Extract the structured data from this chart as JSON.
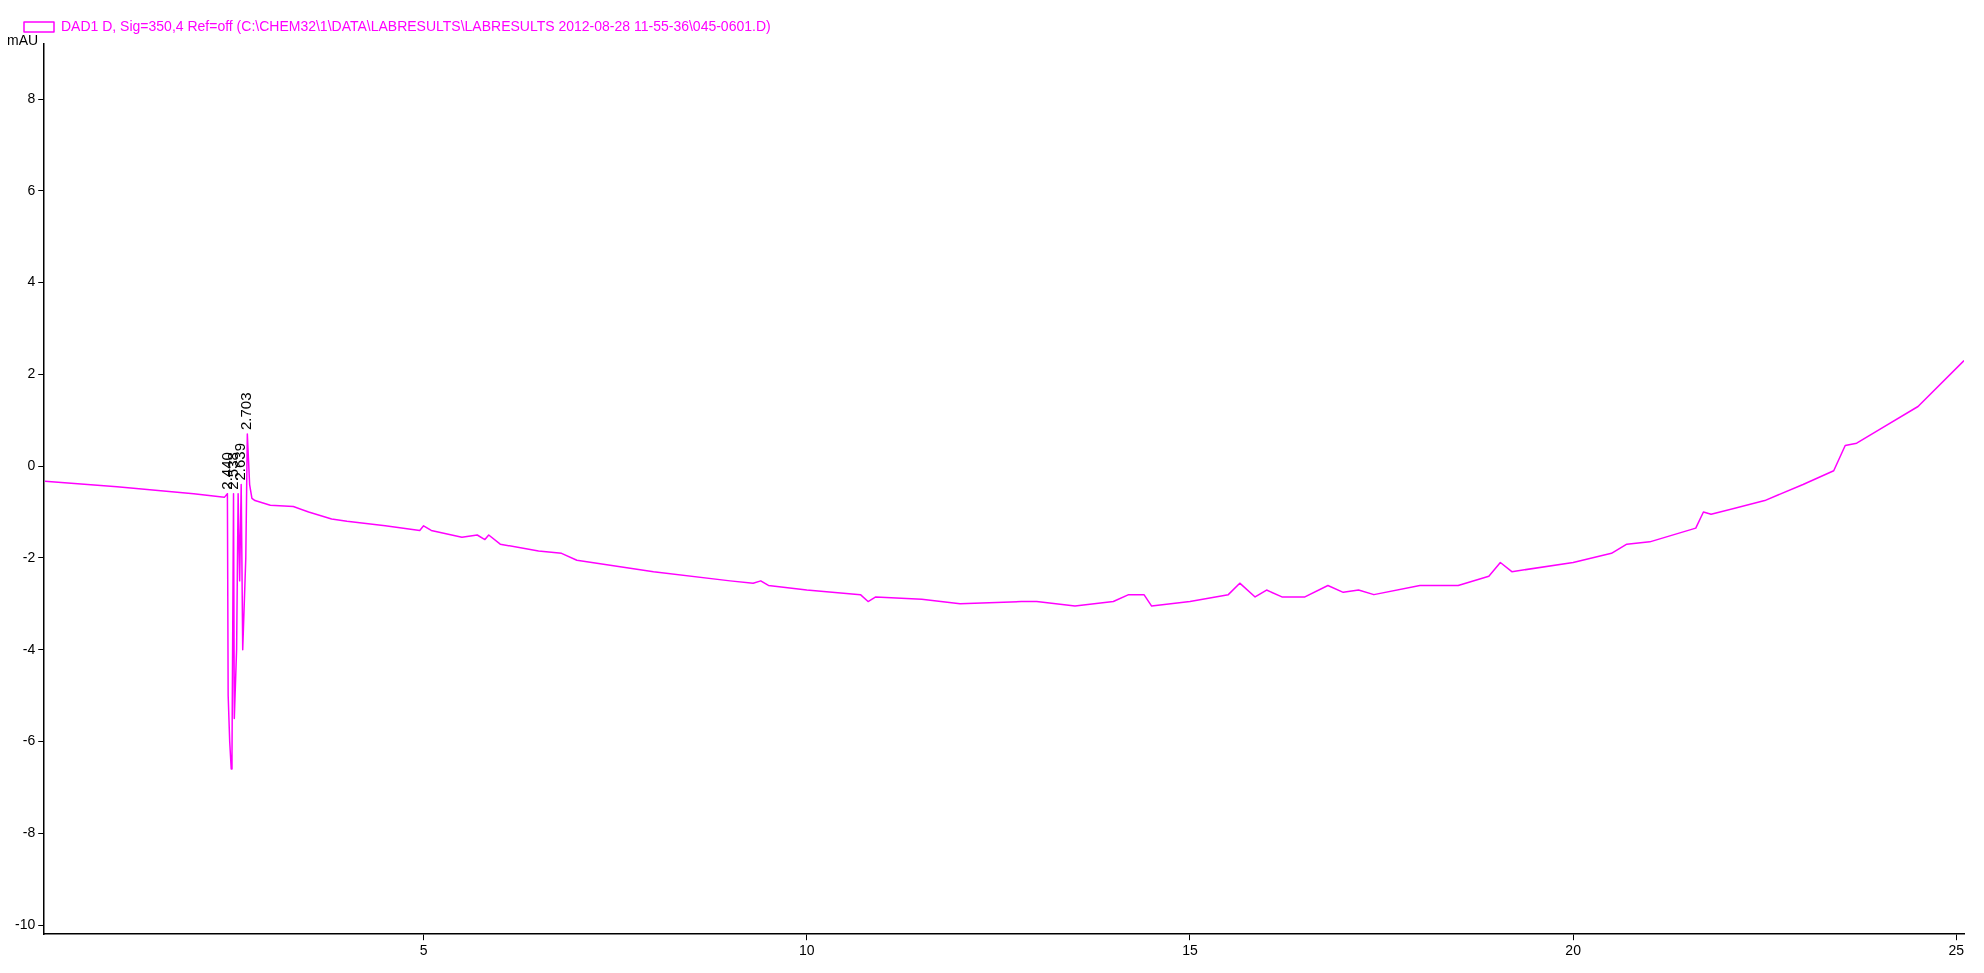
{
  "chart_data": {
    "type": "line",
    "ylabel": "mAU",
    "xlim": [
      0.05,
      25.1
    ],
    "ylim": [
      -10.2,
      9.2
    ],
    "xticks": [
      5,
      10,
      15,
      20,
      25
    ],
    "yticks": [
      -10,
      -8,
      -6,
      -4,
      -2,
      0,
      2,
      4,
      6,
      8
    ],
    "grid": false,
    "legend": "top left",
    "marker": "none",
    "line_style": "solid",
    "annotations": [
      {
        "text": "2.440",
        "x": 2.44,
        "y": -0.6
      },
      {
        "text": "2.538",
        "x": 2.53,
        "y": -0.6
      },
      {
        "text": "2.639",
        "x": 2.62,
        "y": -0.4
      },
      {
        "text": "2.703",
        "x": 2.7,
        "y": 0.7
      }
    ],
    "series": [
      {
        "name": "DAD1 D, Sig=350,4 Ref=off (C:\\CHEM32\\1\\DATA\\LABRESULTS\\LABRESULTS 2012-08-28 11-55-36\\045-0601.D)",
        "color": "#ff00ff",
        "x": [
          0.06,
          1,
          2,
          2.4,
          2.44,
          2.45,
          2.47,
          2.49,
          2.5,
          2.52,
          2.53,
          2.56,
          2.58,
          2.6,
          2.62,
          2.64,
          2.68,
          2.7,
          2.73,
          2.76,
          2.8,
          3,
          3.3,
          3.5,
          3.8,
          4,
          4.5,
          4.95,
          5,
          5.1,
          5.5,
          5.7,
          5.8,
          5.85,
          6,
          6.5,
          6.8,
          7,
          8,
          9,
          9.3,
          9.4,
          9.5,
          10,
          10.7,
          10.8,
          10.9,
          11.5,
          12,
          12.8,
          13,
          13.5,
          14,
          14.2,
          14.4,
          14.5,
          15,
          15.5,
          15.65,
          15.85,
          16,
          16.2,
          16.5,
          16.8,
          17,
          17.2,
          17.4,
          18,
          18.5,
          18.9,
          19.05,
          19.2,
          20,
          20.5,
          20.7,
          21,
          21.6,
          21.7,
          21.8,
          22.5,
          23,
          23.4,
          23.55,
          23.7,
          24,
          24.5,
          25.1
        ],
        "values": [
          -0.33,
          -0.45,
          -0.6,
          -0.68,
          -0.6,
          -5.0,
          -6.0,
          -6.6,
          -6.3,
          -0.6,
          -5.5,
          -4.0,
          -0.6,
          -2.5,
          -0.4,
          -4.0,
          -2.0,
          0.7,
          -0.4,
          -0.7,
          -0.75,
          -0.85,
          -0.88,
          -1.0,
          -1.15,
          -1.2,
          -1.3,
          -1.4,
          -1.3,
          -1.4,
          -1.55,
          -1.5,
          -1.6,
          -1.5,
          -1.7,
          -1.85,
          -1.9,
          -2.05,
          -2.3,
          -2.5,
          -2.55,
          -2.5,
          -2.6,
          -2.7,
          -2.8,
          -2.95,
          -2.85,
          -2.9,
          -3.0,
          -2.95,
          -2.95,
          -3.05,
          -2.95,
          -2.8,
          -2.8,
          -3.05,
          -2.95,
          -2.8,
          -2.55,
          -2.85,
          -2.7,
          -2.85,
          -2.85,
          -2.6,
          -2.75,
          -2.7,
          -2.8,
          -2.6,
          -2.6,
          -2.4,
          -2.1,
          -2.3,
          -2.1,
          -1.9,
          -1.7,
          -1.65,
          -1.35,
          -1.0,
          -1.05,
          -0.75,
          -0.4,
          -0.1,
          0.45,
          0.5,
          0.8,
          1.3,
          2.3
        ]
      }
    ]
  }
}
